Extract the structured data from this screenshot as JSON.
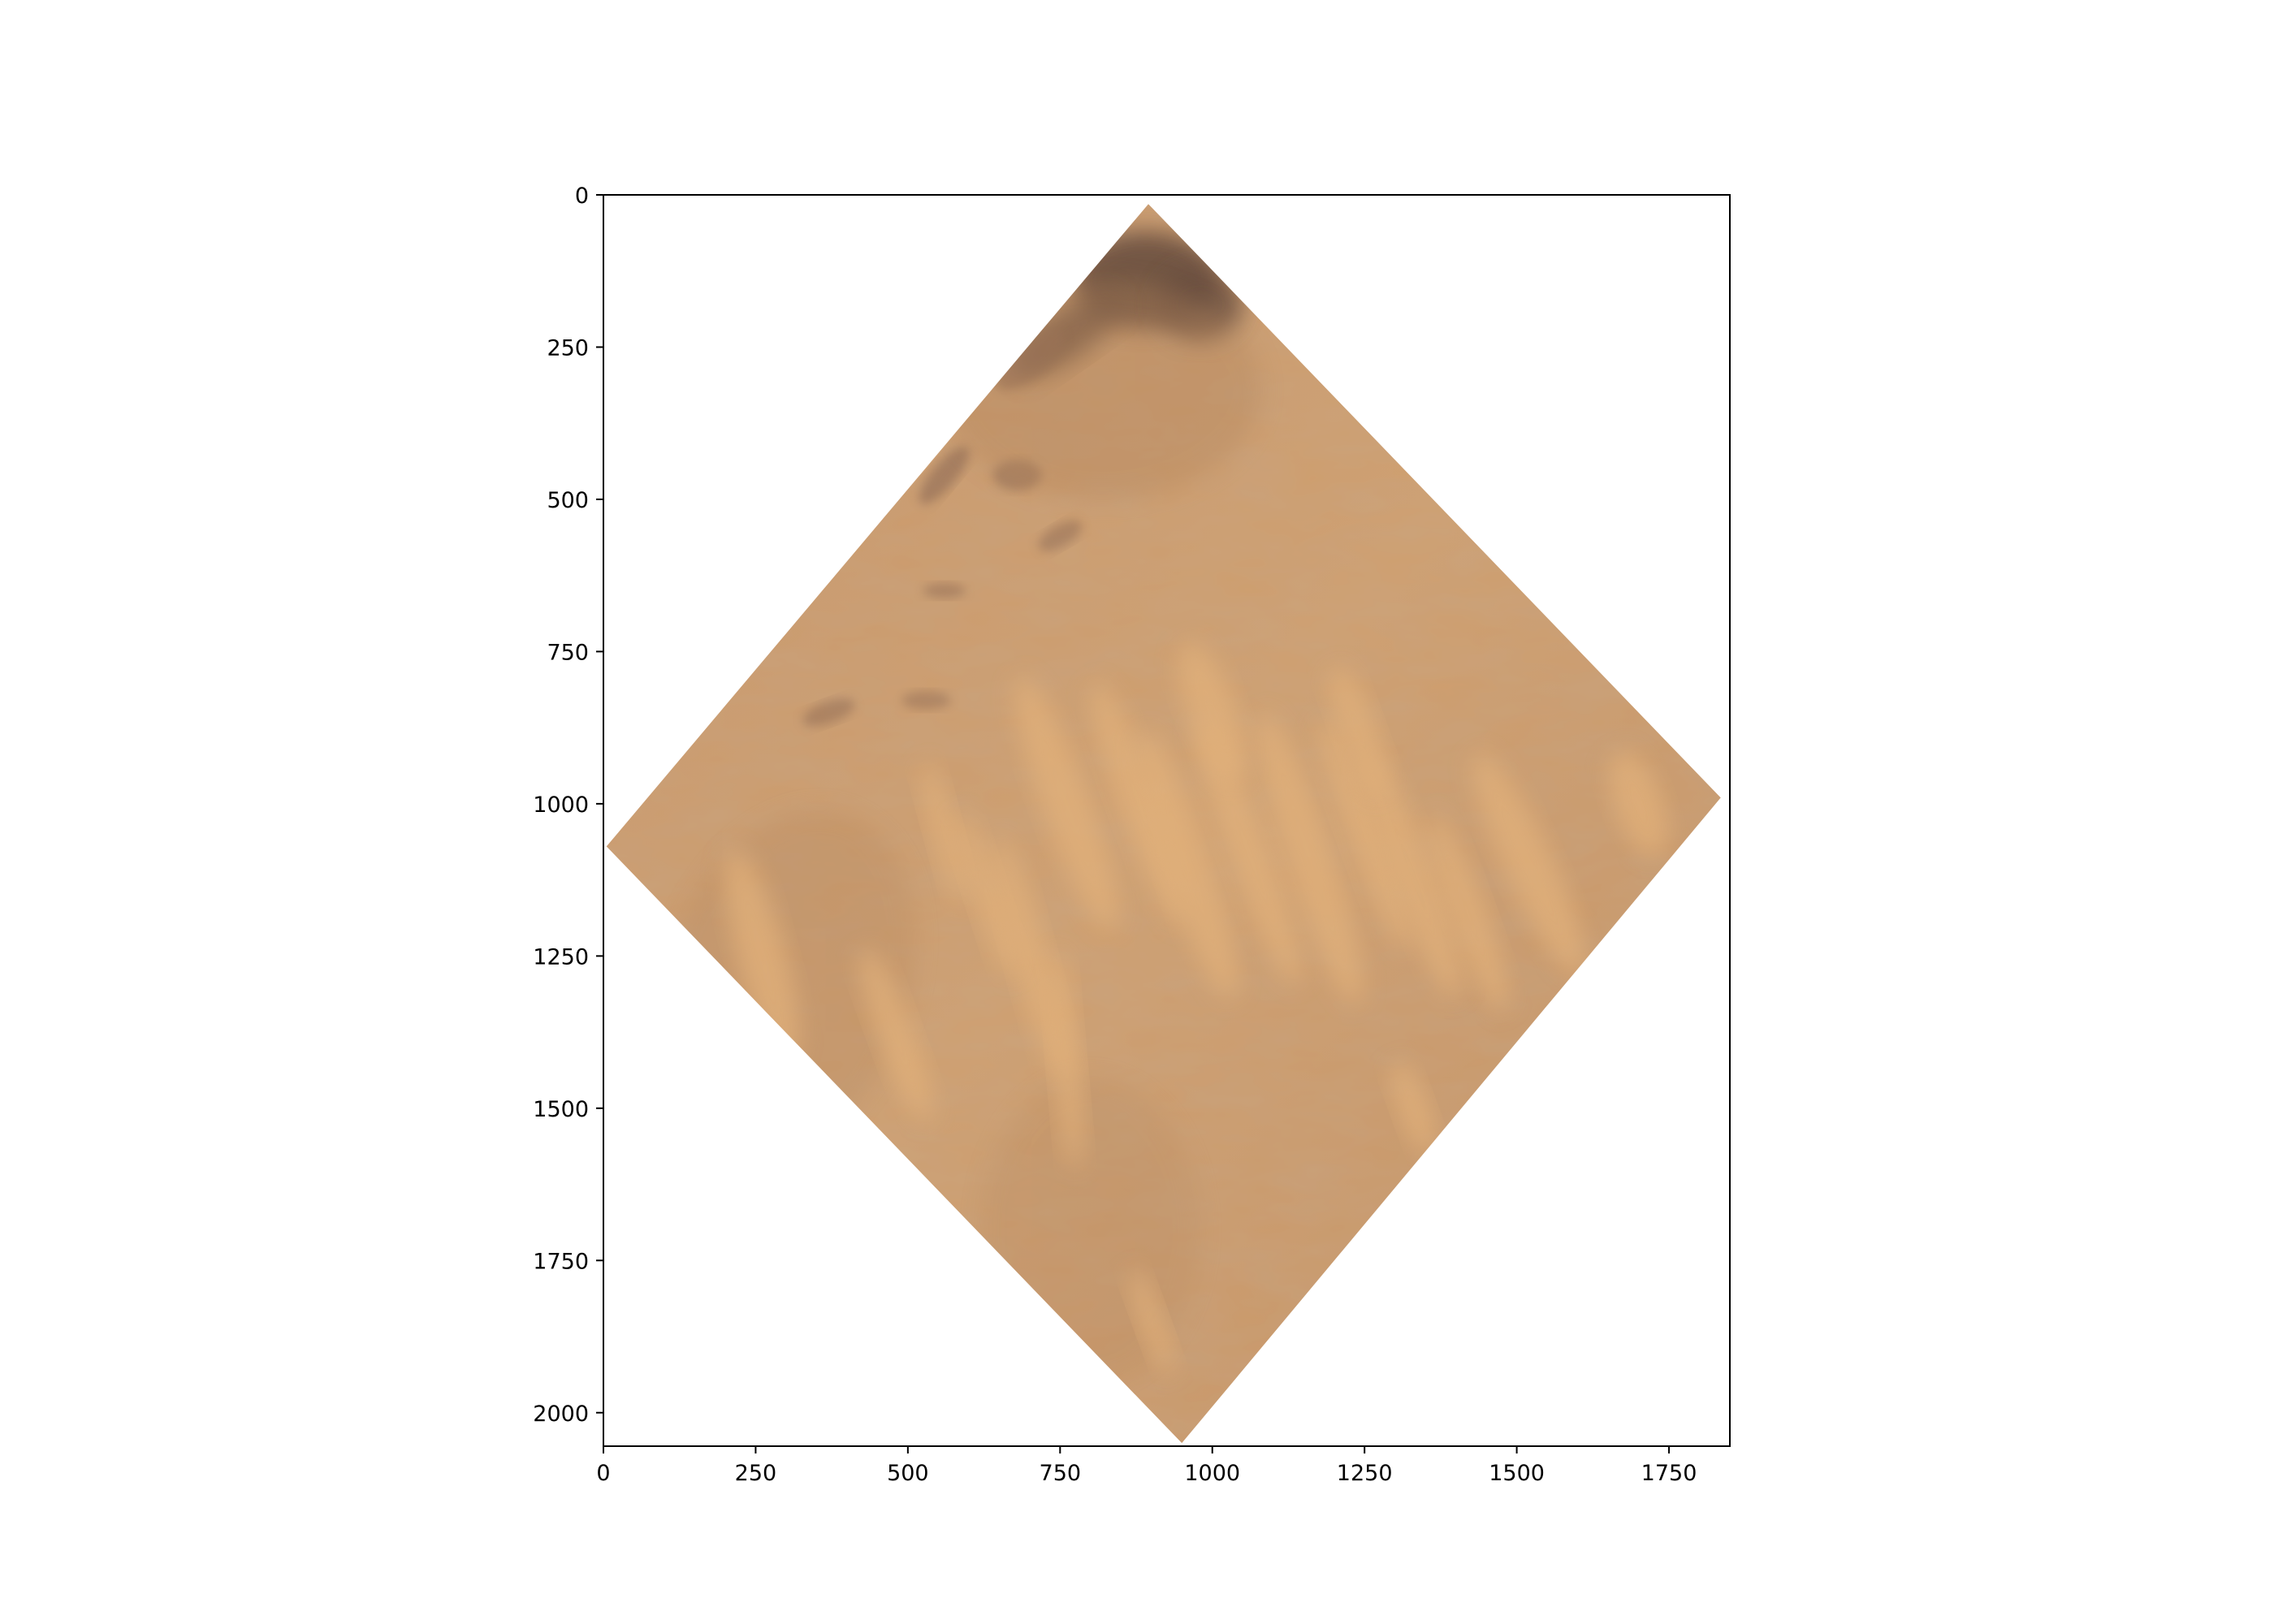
{
  "figure": {
    "x_ticks": [
      "0",
      "250",
      "500",
      "750",
      "1000",
      "1250",
      "1500",
      "1750"
    ],
    "y_ticks": [
      "0",
      "250",
      "500",
      "750",
      "1000",
      "1250",
      "1500",
      "1750",
      "2000"
    ],
    "x_tick_values": [
      0,
      250,
      500,
      750,
      1000,
      1250,
      1500,
      1750
    ],
    "y_tick_values": [
      0,
      250,
      500,
      750,
      1000,
      1250,
      1500,
      1750,
      2000
    ],
    "xlim": [
      0,
      1850
    ],
    "ylim": [
      2055,
      0
    ],
    "image": {
      "description_icon": "satellite-desert-imagery",
      "corners_data_units": [
        [
          895,
          15
        ],
        [
          1835,
          990
        ],
        [
          950,
          2050
        ],
        [
          5,
          1070
        ]
      ],
      "colors": {
        "sand_base": "#c99a6a",
        "sand_light": "#e2b17a",
        "sand_dark": "#b2845c",
        "rock_dark": "#6b4f40",
        "rock_mid": "#8e6b55"
      }
    }
  }
}
